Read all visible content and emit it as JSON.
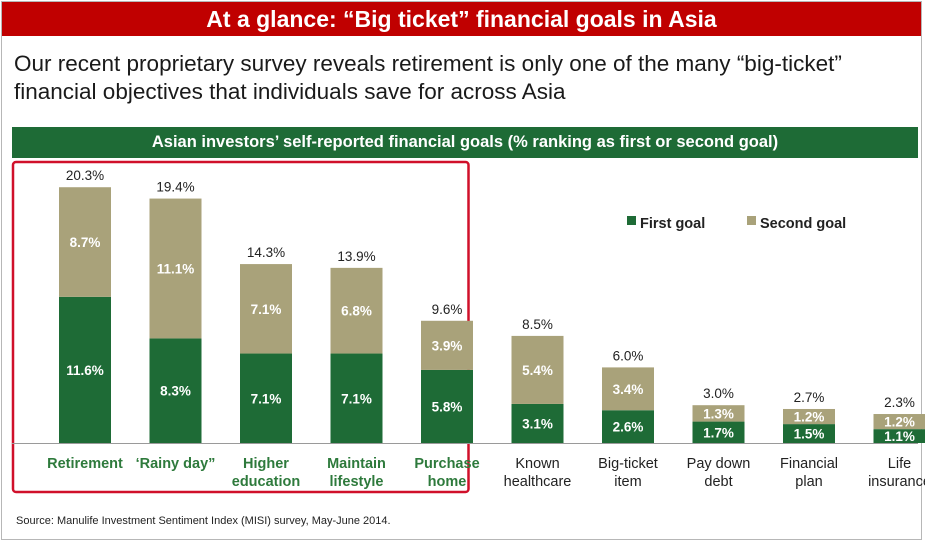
{
  "title": "At a glance: “Big ticket” financial goals in Asia",
  "subtitle": "Our recent proprietary survey reveals retirement is only one of the many “big-ticket” financial objectives that individuals save for across Asia",
  "source": "Source: Manulife Investment Sentiment Index (MISI) survey, May-June 2014.",
  "colors": {
    "title_bar": "#c00000",
    "header_bar": "#1e6b36",
    "first_goal": "#1e6b36",
    "second_goal": "#a9a27a",
    "highlight_box": "#d0102a",
    "highlight_label": "#2e7a3c"
  },
  "chart_data": {
    "type": "bar",
    "stacked": true,
    "title": "Asian investors’ self-reported financial goals (% ranking as first or second goal)",
    "categories": [
      [
        "Retirement"
      ],
      [
        "‘Rainy day”"
      ],
      [
        "Higher",
        "education"
      ],
      [
        "Maintain",
        "lifestyle"
      ],
      [
        "Purchase",
        "home"
      ],
      [
        "Known",
        "healthcare"
      ],
      [
        "Big-ticket",
        "item"
      ],
      [
        "Pay down",
        "debt"
      ],
      [
        "Financial",
        "plan"
      ],
      [
        "Life",
        "insurance"
      ]
    ],
    "series": [
      {
        "name": "First goal",
        "values": [
          11.6,
          8.3,
          7.1,
          7.1,
          5.8,
          3.1,
          2.6,
          1.7,
          1.5,
          1.1
        ],
        "labels": [
          "11.6%",
          "8.3%",
          "7.1%",
          "7.1%",
          "5.8%",
          "3.1%",
          "2.6%",
          "1.7%",
          "1.5%",
          "1.1%"
        ]
      },
      {
        "name": "Second goal",
        "values": [
          8.7,
          11.1,
          7.1,
          6.8,
          3.9,
          5.4,
          3.4,
          1.3,
          1.2,
          1.2
        ],
        "labels": [
          "8.7%",
          "11.1%",
          "7.1%",
          "6.8%",
          "3.9%",
          "5.4%",
          "3.4%",
          "1.3%",
          "1.2%",
          "1.2%"
        ]
      }
    ],
    "totals": [
      "20.3%",
      "19.4%",
      "14.3%",
      "13.9%",
      "9.6%",
      "8.5%",
      "6.0%",
      "3.0%",
      "2.7%",
      "2.3%"
    ],
    "highlighted_count": 5,
    "ylim": [
      0,
      21
    ],
    "legend": "top-right",
    "grid": false
  }
}
